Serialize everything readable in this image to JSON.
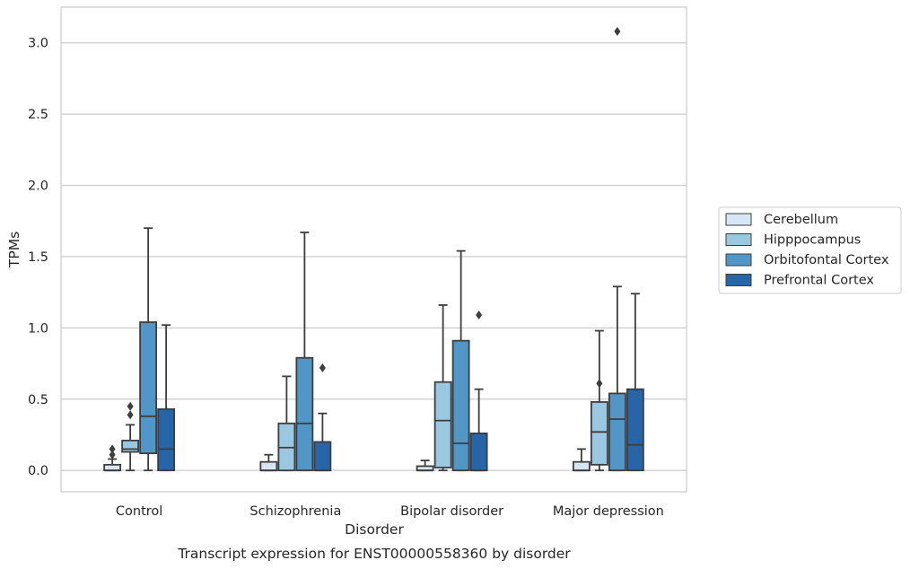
{
  "chart_data": {
    "type": "box",
    "title": "",
    "caption": "Transcript expression for ENST00000558360 by disorder",
    "xlabel": "Disorder",
    "ylabel": "TPMs",
    "ylim": [
      -0.15,
      3.25
    ],
    "yticks": [
      "0.0",
      "0.5",
      "1.0",
      "1.5",
      "2.0",
      "2.5",
      "3.0"
    ],
    "grid": "horizontal",
    "legend_position": "right",
    "categories": [
      "Control",
      "Schizophrenia",
      "Bipolar disorder",
      "Major depression"
    ],
    "series": [
      {
        "name": "Cerebellum",
        "color": "#d6e6f4",
        "boxes": [
          {
            "whisker_low": 0.0,
            "q1": 0.0,
            "median": 0.0,
            "q3": 0.04,
            "whisker_high": 0.08,
            "outliers": [
              0.11,
              0.15
            ]
          },
          {
            "whisker_low": 0.0,
            "q1": 0.0,
            "median": 0.0,
            "q3": 0.06,
            "whisker_high": 0.11,
            "outliers": []
          },
          {
            "whisker_low": 0.0,
            "q1": 0.0,
            "median": 0.0,
            "q3": 0.03,
            "whisker_high": 0.07,
            "outliers": []
          },
          {
            "whisker_low": 0.0,
            "q1": 0.0,
            "median": 0.0,
            "q3": 0.06,
            "whisker_high": 0.15,
            "outliers": []
          }
        ]
      },
      {
        "name": "Hipppocampus",
        "color": "#9ac8e0",
        "boxes": [
          {
            "whisker_low": 0.0,
            "q1": 0.13,
            "median": 0.15,
            "q3": 0.21,
            "whisker_high": 0.32,
            "outliers": [
              0.39,
              0.45
            ]
          },
          {
            "whisker_low": 0.0,
            "q1": 0.0,
            "median": 0.16,
            "q3": 0.33,
            "whisker_high": 0.66,
            "outliers": []
          },
          {
            "whisker_low": 0.0,
            "q1": 0.02,
            "median": 0.35,
            "q3": 0.62,
            "whisker_high": 1.16,
            "outliers": []
          },
          {
            "whisker_low": 0.0,
            "q1": 0.04,
            "median": 0.27,
            "q3": 0.48,
            "whisker_high": 0.98,
            "outliers": [
              0.61
            ]
          }
        ]
      },
      {
        "name": "Orbitofontal Cortex",
        "color": "#5097c8",
        "boxes": [
          {
            "whisker_low": 0.0,
            "q1": 0.12,
            "median": 0.38,
            "q3": 1.04,
            "whisker_high": 1.7,
            "outliers": []
          },
          {
            "whisker_low": 0.0,
            "q1": 0.0,
            "median": 0.33,
            "q3": 0.79,
            "whisker_high": 1.67,
            "outliers": []
          },
          {
            "whisker_low": 0.0,
            "q1": 0.0,
            "median": 0.19,
            "q3": 0.91,
            "whisker_high": 1.54,
            "outliers": []
          },
          {
            "whisker_low": 0.0,
            "q1": 0.0,
            "median": 0.36,
            "q3": 0.54,
            "whisker_high": 1.29,
            "outliers": [
              3.08
            ]
          }
        ]
      },
      {
        "name": "Prefrontal Cortex",
        "color": "#2665a8",
        "boxes": [
          {
            "whisker_low": 0.0,
            "q1": 0.0,
            "median": 0.15,
            "q3": 0.43,
            "whisker_high": 1.02,
            "outliers": []
          },
          {
            "whisker_low": 0.0,
            "q1": 0.0,
            "median": 0.0,
            "q3": 0.2,
            "whisker_high": 0.4,
            "outliers": [
              0.72
            ]
          },
          {
            "whisker_low": 0.0,
            "q1": 0.0,
            "median": 0.0,
            "q3": 0.26,
            "whisker_high": 0.57,
            "outliers": [
              1.09
            ]
          },
          {
            "whisker_low": 0.0,
            "q1": 0.0,
            "median": 0.18,
            "q3": 0.57,
            "whisker_high": 1.24,
            "outliers": []
          }
        ]
      }
    ]
  }
}
